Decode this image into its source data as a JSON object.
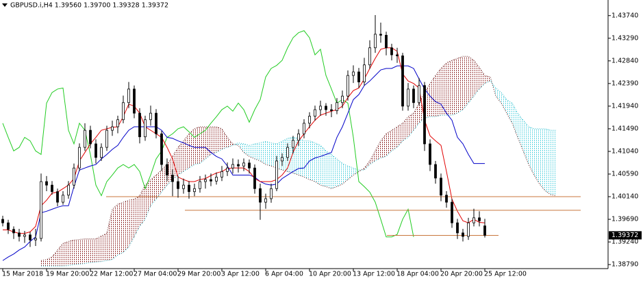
{
  "chart_data": {
    "type": "candlestick",
    "title": "GBPUSD.i,H4  1.39560 1.39700 1.39328 1.39372",
    "categories": [
      "15 Mar 2018",
      null,
      null,
      null,
      null,
      null,
      null,
      null,
      "19 Mar 20:00",
      null,
      null,
      null,
      null,
      null,
      null,
      null,
      "22 Mar 12:00",
      null,
      null,
      null,
      null,
      null,
      null,
      null,
      "27 Mar 04:00",
      null,
      null,
      null,
      null,
      null,
      null,
      null,
      "29 Mar 20:00",
      null,
      null,
      null,
      null,
      null,
      null,
      null,
      "3 Apr 12:00",
      null,
      null,
      null,
      null,
      null,
      null,
      null,
      "6 Apr 04:00",
      null,
      null,
      null,
      null,
      null,
      null,
      null,
      "10 Apr 20:00",
      null,
      null,
      null,
      null,
      null,
      null,
      null,
      "13 Apr 12:00",
      null,
      null,
      null,
      null,
      null,
      null,
      null,
      "18 Apr 04:00",
      null,
      null,
      null,
      null,
      null,
      null,
      null,
      "20 Apr 20:00",
      null,
      null,
      null,
      null,
      null,
      null,
      null,
      "25 Apr 12:00",
      null,
      null,
      null,
      null,
      null,
      null,
      null,
      null,
      null,
      null,
      null,
      null,
      null
    ],
    "candles": [
      [
        1.3969,
        1.3976,
        1.3955,
        1.3962
      ],
      [
        1.3962,
        1.3968,
        1.394,
        1.3949
      ],
      [
        1.3949,
        1.3955,
        1.393,
        1.3942
      ],
      [
        1.3942,
        1.395,
        1.3925,
        1.3935
      ],
      [
        1.3935,
        1.3946,
        1.3922,
        1.3938
      ],
      [
        1.3938,
        1.3944,
        1.3914,
        1.3928
      ],
      [
        1.3928,
        1.395,
        1.3916,
        1.3931
      ],
      [
        1.3931,
        1.406,
        1.3925,
        1.4044
      ],
      [
        1.4044,
        1.4055,
        1.4025,
        1.4037
      ],
      [
        1.4037,
        1.4045,
        1.4018,
        1.4024
      ],
      [
        1.4024,
        1.403,
        1.3995,
        1.4003
      ],
      [
        1.4003,
        1.4025,
        1.3998,
        1.4017
      ],
      [
        1.4017,
        1.4045,
        1.401,
        1.4037
      ],
      [
        1.4037,
        1.408,
        1.403,
        1.4071
      ],
      [
        1.4071,
        1.412,
        1.4065,
        1.4112
      ],
      [
        1.4112,
        1.416,
        1.4105,
        1.4146
      ],
      [
        1.4146,
        1.4155,
        1.411,
        1.4119
      ],
      [
        1.4119,
        1.4128,
        1.408,
        1.4092
      ],
      [
        1.4092,
        1.412,
        1.4085,
        1.4112
      ],
      [
        1.4112,
        1.4155,
        1.4105,
        1.4146
      ],
      [
        1.4146,
        1.4165,
        1.4135,
        1.4153
      ],
      [
        1.4153,
        1.4175,
        1.414,
        1.4167
      ],
      [
        1.4167,
        1.4215,
        1.416,
        1.4201
      ],
      [
        1.4201,
        1.4242,
        1.419,
        1.4228
      ],
      [
        1.4228,
        1.4235,
        1.417,
        1.418
      ],
      [
        1.418,
        1.419,
        1.412,
        1.4133
      ],
      [
        1.4133,
        1.4175,
        1.4125,
        1.4167
      ],
      [
        1.4167,
        1.4195,
        1.4155,
        1.418
      ],
      [
        1.418,
        1.4188,
        1.413,
        1.4139
      ],
      [
        1.4139,
        1.4145,
        1.4065,
        1.4078
      ],
      [
        1.4078,
        1.409,
        1.4045,
        1.4057
      ],
      [
        1.4057,
        1.4068,
        1.4015,
        1.4044
      ],
      [
        1.4044,
        1.4055,
        1.4012,
        1.403
      ],
      [
        1.403,
        1.405,
        1.402,
        1.4037
      ],
      [
        1.4037,
        1.4045,
        1.401,
        1.4024
      ],
      [
        1.4024,
        1.404,
        1.4015,
        1.403
      ],
      [
        1.403,
        1.4055,
        1.4022,
        1.4044
      ],
      [
        1.4044,
        1.4058,
        1.403,
        1.4048
      ],
      [
        1.4048,
        1.406,
        1.4035,
        1.4045
      ],
      [
        1.4045,
        1.4062,
        1.4038,
        1.4053
      ],
      [
        1.4053,
        1.4075,
        1.4045,
        1.4064
      ],
      [
        1.4064,
        1.4082,
        1.4055,
        1.4071
      ],
      [
        1.4071,
        1.409,
        1.406,
        1.4078
      ],
      [
        1.4078,
        1.4088,
        1.4062,
        1.4075
      ],
      [
        1.4075,
        1.409,
        1.4065,
        1.4081
      ],
      [
        1.4081,
        1.4088,
        1.406,
        1.4071
      ],
      [
        1.4071,
        1.4078,
        1.402,
        1.403
      ],
      [
        1.403,
        1.404,
        1.3968,
        1.4003
      ],
      [
        1.4003,
        1.402,
        1.399,
        1.401
      ],
      [
        1.401,
        1.404,
        1.4002,
        1.403
      ],
      [
        1.403,
        1.4095,
        1.4025,
        1.4085
      ],
      [
        1.4085,
        1.41,
        1.4075,
        1.4092
      ],
      [
        1.4092,
        1.412,
        1.4085,
        1.4112
      ],
      [
        1.4112,
        1.4135,
        1.41,
        1.4126
      ],
      [
        1.4126,
        1.4148,
        1.4115,
        1.4139
      ],
      [
        1.4139,
        1.4168,
        1.413,
        1.416
      ],
      [
        1.416,
        1.4182,
        1.415,
        1.4174
      ],
      [
        1.4174,
        1.4195,
        1.4165,
        1.4187
      ],
      [
        1.4187,
        1.4205,
        1.4175,
        1.4194
      ],
      [
        1.4194,
        1.42,
        1.4175,
        1.4187
      ],
      [
        1.4187,
        1.4198,
        1.4172,
        1.4185
      ],
      [
        1.4185,
        1.421,
        1.4178,
        1.4201
      ],
      [
        1.4201,
        1.4225,
        1.419,
        1.4214
      ],
      [
        1.4214,
        1.4265,
        1.4205,
        1.4255
      ],
      [
        1.4255,
        1.4275,
        1.424,
        1.4262
      ],
      [
        1.4262,
        1.427,
        1.423,
        1.4242
      ],
      [
        1.4242,
        1.429,
        1.4235,
        1.4276
      ],
      [
        1.4276,
        1.4325,
        1.4268,
        1.431
      ],
      [
        1.431,
        1.4375,
        1.43,
        1.4337
      ],
      [
        1.4337,
        1.436,
        1.432,
        1.4335
      ],
      [
        1.4335,
        1.4342,
        1.4295,
        1.431
      ],
      [
        1.431,
        1.4318,
        1.4285,
        1.4296
      ],
      [
        1.4296,
        1.431,
        1.428,
        1.4294
      ],
      [
        1.4294,
        1.43,
        1.4185,
        1.4194
      ],
      [
        1.4194,
        1.424,
        1.4185,
        1.4228
      ],
      [
        1.4228,
        1.4235,
        1.419,
        1.4201
      ],
      [
        1.4201,
        1.425,
        1.4195,
        1.4235
      ],
      [
        1.4235,
        1.4242,
        1.4105,
        1.4119
      ],
      [
        1.4119,
        1.4128,
        1.4065,
        1.4078
      ],
      [
        1.4078,
        1.4085,
        1.404,
        1.4051
      ],
      [
        1.4051,
        1.406,
        1.4005,
        1.4017
      ],
      [
        1.4017,
        1.4025,
        1.3992,
        1.4003
      ],
      [
        1.4003,
        1.401,
        1.3952,
        1.3962
      ],
      [
        1.3962,
        1.397,
        1.393,
        1.3942
      ],
      [
        1.3942,
        1.395,
        1.3925,
        1.3935
      ],
      [
        1.3935,
        1.3972,
        1.3928,
        1.3962
      ],
      [
        1.3962,
        1.399,
        1.3955,
        1.3972
      ],
      [
        1.3972,
        1.3985,
        1.3955,
        1.3966
      ],
      [
        1.3956,
        1.397,
        1.39328,
        1.39372
      ],
      null,
      null,
      null,
      null,
      null,
      null,
      null,
      null,
      null,
      null,
      null,
      null,
      null
    ],
    "candle_up_color": "#ffffff",
    "candle_down_color": "#000000",
    "tenkan": {
      "color": "#e00000",
      "values": [
        1.3948,
        1.3948,
        1.3944,
        1.3941,
        1.3941,
        1.3944,
        1.3955,
        1.3996,
        1.4007,
        1.4021,
        1.4023,
        1.403,
        1.4037,
        1.405,
        1.4085,
        1.4102,
        1.4119,
        1.4132,
        1.4146,
        1.4149,
        1.4152,
        1.4153,
        1.4173,
        1.4198,
        1.4194,
        1.418,
        1.4153,
        1.4146,
        1.4139,
        1.4132,
        1.4112,
        1.4089,
        1.4053,
        1.4048,
        1.4044,
        1.4044,
        1.4048,
        1.405,
        1.4056,
        1.4061,
        1.4064,
        1.407,
        1.4071,
        1.4071,
        1.4071,
        1.4064,
        1.405,
        1.4044,
        1.4044,
        1.4044,
        1.4048,
        1.4057,
        1.4071,
        1.4102,
        1.4125,
        1.4139,
        1.4153,
        1.4166,
        1.4176,
        1.418,
        1.4184,
        1.4187,
        1.4194,
        1.4211,
        1.4225,
        1.423,
        1.4248,
        1.4269,
        1.4289,
        1.4307,
        1.431,
        1.431,
        1.4303,
        1.4258,
        1.4244,
        1.4239,
        1.423,
        1.4166,
        1.4135,
        1.4125,
        1.4116,
        1.4064,
        1.4009,
        1.3985,
        1.3966,
        1.3962,
        1.3969,
        1.3963,
        1.3962,
        null,
        null,
        null,
        null,
        null,
        null,
        null,
        null,
        null,
        null,
        null,
        null,
        null
      ]
    },
    "kijun": {
      "color": "#0000c8",
      "values": [
        1.3887,
        1.3894,
        1.39,
        1.3908,
        1.3914,
        1.3925,
        1.3934,
        1.3982,
        1.3985,
        1.3989,
        1.3993,
        1.3996,
        1.3996,
        1.4034,
        1.4067,
        1.4071,
        1.4075,
        1.4078,
        1.4089,
        1.4098,
        1.4108,
        1.4116,
        1.4132,
        1.4146,
        1.4153,
        1.4153,
        1.4153,
        1.4153,
        1.4153,
        1.4146,
        1.4132,
        1.413,
        1.4125,
        1.4121,
        1.4116,
        1.4112,
        1.4112,
        1.4112,
        1.4102,
        1.4094,
        1.4089,
        1.4075,
        1.4057,
        1.4057,
        1.4057,
        1.4057,
        1.4053,
        1.4044,
        1.4039,
        1.4037,
        1.4039,
        1.405,
        1.4057,
        1.4064,
        1.407,
        1.4071,
        1.4085,
        1.4091,
        1.4094,
        1.4098,
        1.4102,
        1.4132,
        1.4153,
        1.418,
        1.4207,
        1.4217,
        1.4235,
        1.4244,
        1.4255,
        1.4266,
        1.4269,
        1.4269,
        1.4274,
        1.4274,
        1.4274,
        1.4269,
        1.4248,
        1.4228,
        1.4214,
        1.4203,
        1.4198,
        1.418,
        1.4166,
        1.4132,
        1.4119,
        1.4098,
        1.408,
        1.408,
        1.408,
        null,
        null,
        null,
        null,
        null,
        null,
        null,
        null,
        null,
        null,
        null,
        null,
        null
      ]
    },
    "chikou": {
      "color": "#22cc22",
      "values": [
        1.416,
        1.4132,
        1.4105,
        1.4112,
        1.4132,
        1.4125,
        1.4105,
        1.4098,
        1.42,
        1.4221,
        1.4228,
        1.423,
        1.4146,
        1.4119,
        1.416,
        1.4146,
        1.4098,
        1.4037,
        1.4016,
        1.4044,
        1.4057,
        1.4071,
        1.4078,
        1.4071,
        1.4078,
        1.4064,
        1.403,
        1.4057,
        1.4089,
        1.4105,
        1.4132,
        1.4139,
        1.4149,
        1.4153,
        1.4143,
        1.4132,
        1.4139,
        1.4146,
        1.416,
        1.4173,
        1.4187,
        1.4194,
        1.4184,
        1.42,
        1.4187,
        1.4162,
        1.4187,
        1.4207,
        1.4252,
        1.4269,
        1.4275,
        1.4285,
        1.431,
        1.433,
        1.434,
        1.4344,
        1.433,
        1.4296,
        1.4307,
        1.4255,
        1.4228,
        1.42,
        1.4207,
        1.42,
        1.4132,
        1.4044,
        1.4034,
        1.4023,
        1.4003,
        1.3969,
        1.3934,
        1.3934,
        1.3939,
        1.3969,
        1.3989,
        1.3934,
        null,
        null,
        null,
        null,
        null,
        null,
        null,
        null,
        null,
        null,
        null,
        null,
        null,
        null,
        null,
        null,
        null,
        null,
        null,
        null,
        null,
        null,
        null,
        null,
        null,
        null
      ]
    },
    "senkou_a": {
      "color": "#22b8c8",
      "values": [
        null,
        null,
        null,
        null,
        null,
        null,
        null,
        1.3876,
        1.3876,
        1.3876,
        1.3876,
        1.3876,
        1.3877,
        1.3879,
        1.388,
        1.3881,
        1.3883,
        1.3884,
        1.3885,
        1.3887,
        1.3889,
        1.3898,
        1.3903,
        1.3914,
        1.3934,
        1.3955,
        1.3969,
        1.3996,
        1.4009,
        1.4023,
        1.4037,
        1.4048,
        1.4057,
        1.4064,
        1.4071,
        1.4078,
        1.408,
        1.4089,
        1.4098,
        1.4102,
        1.4108,
        1.4112,
        1.4116,
        1.4121,
        1.4119,
        1.4116,
        1.4119,
        1.4121,
        1.4124,
        1.4121,
        1.4119,
        1.4124,
        1.413,
        1.4132,
        1.413,
        1.4125,
        1.4125,
        1.4121,
        1.4116,
        1.4105,
        1.4098,
        1.4089,
        1.408,
        1.4075,
        1.4071,
        1.4067,
        1.4067,
        1.4078,
        1.4085,
        1.4091,
        1.4094,
        1.4105,
        1.4112,
        1.4125,
        1.4132,
        1.4146,
        1.416,
        1.417,
        1.4173,
        1.4173,
        1.4176,
        1.4176,
        1.4176,
        1.418,
        1.4187,
        1.42,
        1.4214,
        1.4228,
        1.4239,
        1.4244,
        1.423,
        1.4221,
        1.4207,
        1.42,
        1.418,
        1.4166,
        1.4153,
        1.4149,
        1.4149,
        1.4149,
        1.4146,
        1.4146
      ]
    },
    "senkou_b": {
      "color": "#5a1010",
      "values": [
        null,
        null,
        null,
        null,
        null,
        null,
        null,
        1.3887,
        1.3889,
        1.3894,
        1.3908,
        1.3921,
        1.3925,
        1.3928,
        1.3929,
        1.393,
        1.393,
        1.393,
        1.3936,
        1.3941,
        1.3989,
        1.3999,
        1.4003,
        1.4007,
        1.4009,
        1.4016,
        1.4037,
        1.4048,
        1.4057,
        1.4067,
        1.4078,
        1.4094,
        1.4112,
        1.4125,
        1.4139,
        1.4149,
        1.4153,
        1.4153,
        1.4153,
        1.4153,
        1.4149,
        1.4132,
        1.4119,
        1.4116,
        1.4102,
        1.4094,
        1.4089,
        1.4085,
        1.4078,
        1.4075,
        1.4071,
        1.4067,
        1.4064,
        1.4061,
        1.4057,
        1.4053,
        1.4048,
        1.4044,
        1.4037,
        1.4034,
        1.403,
        1.4034,
        1.4039,
        1.4048,
        1.4057,
        1.4064,
        1.4071,
        1.4085,
        1.4105,
        1.4125,
        1.4139,
        1.4146,
        1.4153,
        1.416,
        1.4173,
        1.418,
        1.42,
        1.4221,
        1.4239,
        1.4255,
        1.4269,
        1.428,
        1.4285,
        1.4289,
        1.4293,
        1.4293,
        1.4285,
        1.4271,
        1.4255,
        1.4252,
        1.4214,
        1.42,
        1.418,
        1.416,
        1.4132,
        1.4105,
        1.4078,
        1.4057,
        1.4039,
        1.4026,
        1.4018,
        1.4016
      ]
    },
    "cloud_colors": {
      "bull": "#30c8d8",
      "bear": "#7a0000"
    },
    "levels": {
      "color": "#c8763c",
      "values": [
        1.4014,
        1.3987,
        1.3937
      ]
    },
    "last_price": 1.39372,
    "ylim": [
      1.3871,
      1.4405
    ],
    "yticks": [
      {
        "value": 1.3879,
        "label": "1.38790"
      },
      {
        "value": 1.3924,
        "label": "1.39240"
      },
      {
        "value": 1.3969,
        "label": "1.39690"
      },
      {
        "value": 1.4014,
        "label": "1.40140"
      },
      {
        "value": 1.4059,
        "label": "1.40590"
      },
      {
        "value": 1.4104,
        "label": "1.41040"
      },
      {
        "value": 1.4149,
        "label": "1.41490"
      },
      {
        "value": 1.4194,
        "label": "1.41940"
      },
      {
        "value": 1.4239,
        "label": "1.42390"
      },
      {
        "value": 1.4284,
        "label": "1.42840"
      },
      {
        "value": 1.4329,
        "label": "1.43290"
      },
      {
        "value": 1.4374,
        "label": "1.43740"
      }
    ]
  }
}
